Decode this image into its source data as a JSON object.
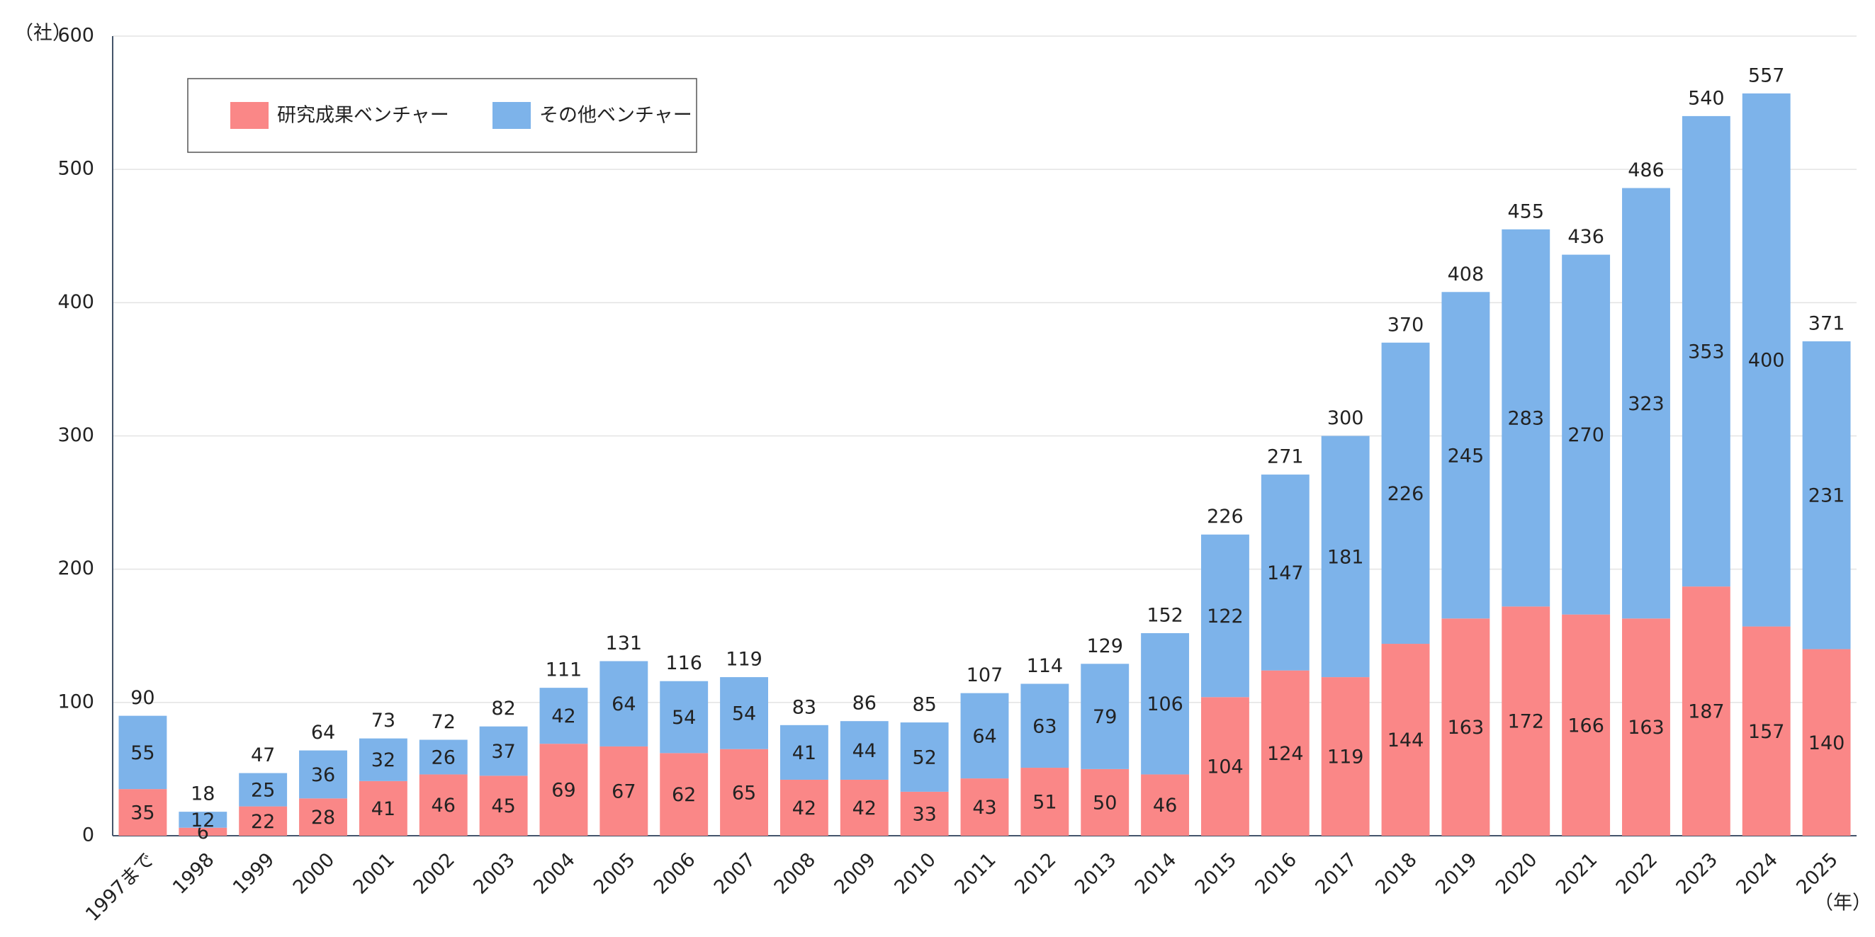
{
  "chart_data": {
    "type": "stacked-bar",
    "y_label": "（社）",
    "x_label": "（年）",
    "categories": [
      "1997まで",
      "1998",
      "1999",
      "2000",
      "2001",
      "2002",
      "2003",
      "2004",
      "2005",
      "2006",
      "2007",
      "2008",
      "2009",
      "2010",
      "2011",
      "2012",
      "2013",
      "2014",
      "2015",
      "2016",
      "2017",
      "2018",
      "2019",
      "2020",
      "2021",
      "2022",
      "2023",
      "2024",
      "2025"
    ],
    "series": [
      {
        "name": "研究成果ベンチャー",
        "color": "#fa8787",
        "values": [
          35,
          6,
          22,
          28,
          41,
          46,
          45,
          69,
          67,
          62,
          65,
          42,
          42,
          33,
          43,
          51,
          50,
          46,
          104,
          124,
          119,
          144,
          163,
          172,
          166,
          163,
          187,
          157,
          140
        ]
      },
      {
        "name": "その他ベンチャー",
        "color": "#7db3ea",
        "values": [
          55,
          12,
          25,
          36,
          32,
          26,
          37,
          42,
          64,
          54,
          54,
          41,
          44,
          52,
          64,
          63,
          79,
          106,
          122,
          147,
          181,
          226,
          245,
          283,
          270,
          323,
          353,
          400,
          231
        ]
      }
    ],
    "totals": [
      90,
      18,
      47,
      64,
      73,
      72,
      82,
      111,
      131,
      116,
      119,
      83,
      86,
      85,
      107,
      114,
      129,
      152,
      226,
      271,
      300,
      370,
      408,
      455,
      436,
      486,
      540,
      557,
      371
    ],
    "ylim": [
      0,
      600
    ],
    "yticks": [
      0,
      100,
      200,
      300,
      400,
      500,
      600
    ],
    "grid": true
  }
}
